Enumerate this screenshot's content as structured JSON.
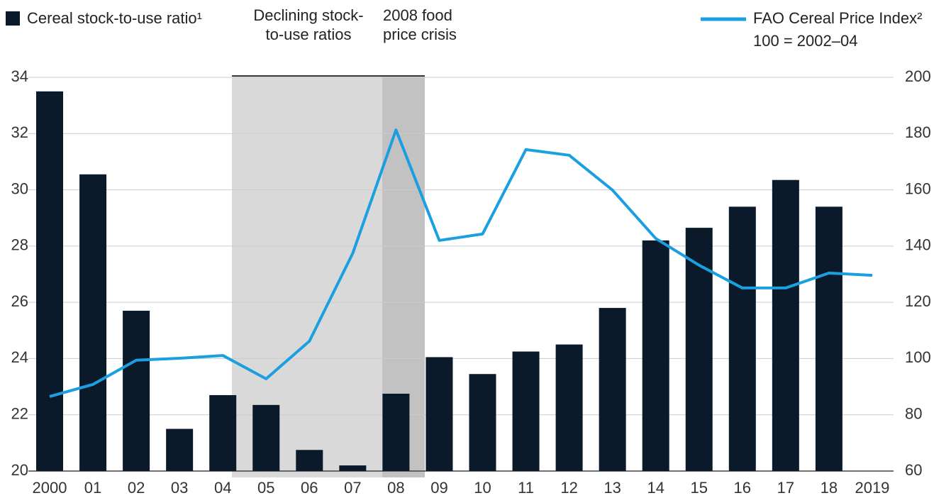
{
  "chart_data": {
    "type": "bar_line",
    "categories": [
      "2000",
      "01",
      "02",
      "03",
      "04",
      "05",
      "06",
      "07",
      "08",
      "09",
      "10",
      "11",
      "12",
      "13",
      "14",
      "15",
      "16",
      "17",
      "18",
      "2019"
    ],
    "series": [
      {
        "name": "Cereal stock-to-use ratio¹",
        "type": "bar",
        "color": "#0b1a2a",
        "values": [
          33.5,
          30.55,
          25.7,
          21.5,
          22.7,
          22.35,
          20.75,
          20.2,
          22.75,
          24.05,
          23.45,
          24.25,
          24.5,
          25.8,
          28.2,
          28.65,
          29.4,
          30.35,
          29.4,
          null
        ]
      },
      {
        "name": "FAO Cereal Price Index²",
        "type": "line",
        "axis": "y2",
        "color": "#1a9fe0",
        "values": [
          86.5,
          90.8,
          99.4,
          100.1,
          101.1,
          92.8,
          106.2,
          137.4,
          181.3,
          142,
          144.3,
          174.3,
          172.3,
          159.9,
          142.7,
          133.2,
          125.1,
          125.1,
          130.4,
          129.6
        ]
      }
    ],
    "y2_label": "100 = 2002–04",
    "annotations": [
      "Declining stock-to-use ratios",
      "2008 food price crisis"
    ],
    "ylim": [
      20,
      34
    ],
    "yticks": [
      20,
      22,
      24,
      26,
      28,
      30,
      32,
      34
    ],
    "y2lim": [
      60,
      200
    ],
    "y2ticks": [
      60,
      80,
      100,
      120,
      140,
      160,
      180,
      200
    ],
    "grid": true
  }
}
